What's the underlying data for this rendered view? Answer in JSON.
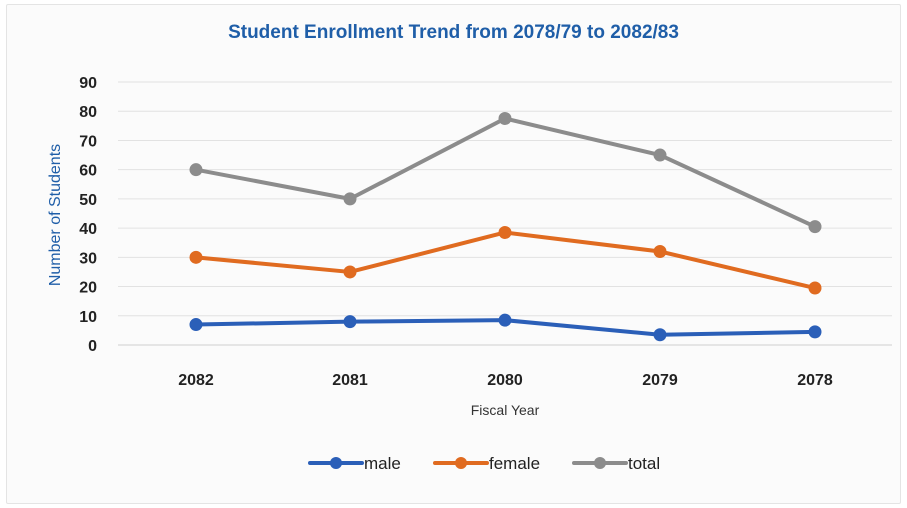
{
  "chart_data": {
    "type": "line",
    "title": "Student Enrollment Trend from 2078/79 to 2082/83",
    "xlabel": "Fiscal Year",
    "ylabel": "Number of Students",
    "categories": [
      "2082",
      "2081",
      "2080",
      "2079",
      "2078"
    ],
    "ylim": [
      0,
      90
    ],
    "yticks": [
      0,
      10,
      20,
      30,
      40,
      50,
      60,
      70,
      80,
      90
    ],
    "grid": true,
    "legend_position": "bottom",
    "series": [
      {
        "name": "male",
        "color": "#2b5fb8",
        "values": [
          7,
          8,
          8.5,
          3.5,
          4.5
        ]
      },
      {
        "name": "female",
        "color": "#e06b20",
        "values": [
          30,
          25,
          38.5,
          32,
          19.5
        ]
      },
      {
        "name": "total",
        "color": "#8c8c8c",
        "values": [
          60,
          50,
          77.5,
          65,
          40.5
        ]
      }
    ]
  }
}
